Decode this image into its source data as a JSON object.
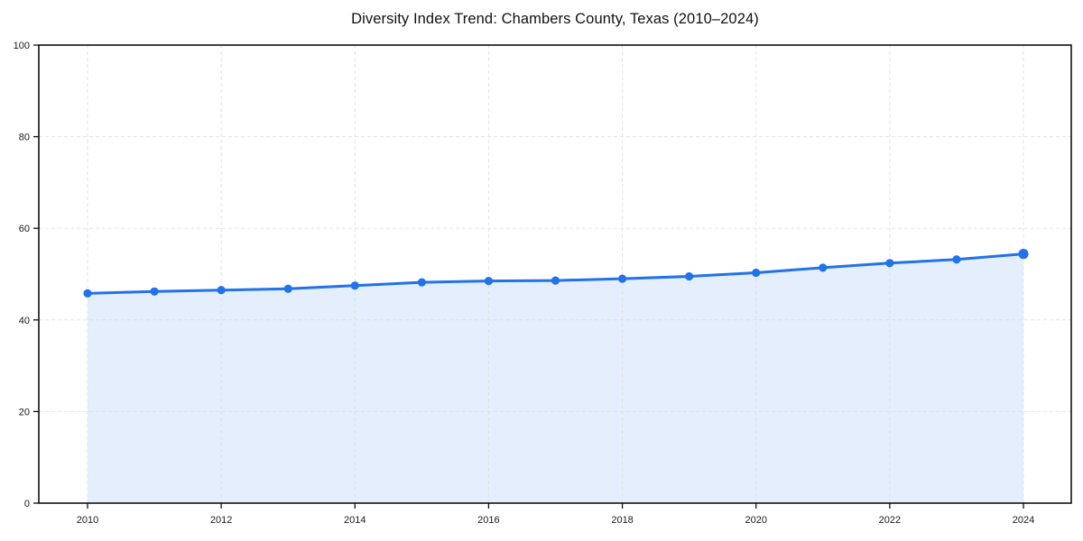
{
  "chart_data": {
    "type": "area",
    "title": "Diversity Index Trend: Chambers County, Texas (2010–2024)",
    "xlabel": "",
    "ylabel": "",
    "x": [
      2010,
      2011,
      2012,
      2013,
      2014,
      2015,
      2016,
      2017,
      2018,
      2019,
      2020,
      2021,
      2022,
      2023,
      2024
    ],
    "values": [
      45.8,
      46.2,
      46.5,
      46.8,
      47.5,
      48.2,
      48.5,
      48.6,
      49.0,
      49.5,
      50.3,
      51.4,
      52.4,
      53.2,
      54.4
    ],
    "series_name": "Diversity Index",
    "xticks": [
      2010,
      2012,
      2014,
      2016,
      2018,
      2020,
      2022,
      2024
    ],
    "yticks": [
      0,
      20,
      40,
      60,
      80,
      100
    ],
    "ylim": [
      0,
      100
    ],
    "xlim": [
      2010,
      2024
    ],
    "grid": "dashed",
    "legend": "none",
    "colors": {
      "line": "#2272e8",
      "marker": "#2272e8",
      "fill": "rgba(34, 114, 232, 0.12)",
      "grid": "#dfdfdf",
      "axis": "#111111",
      "tick_label": "#1a1a1a",
      "title": "#111111",
      "background": "#ffffff"
    }
  }
}
